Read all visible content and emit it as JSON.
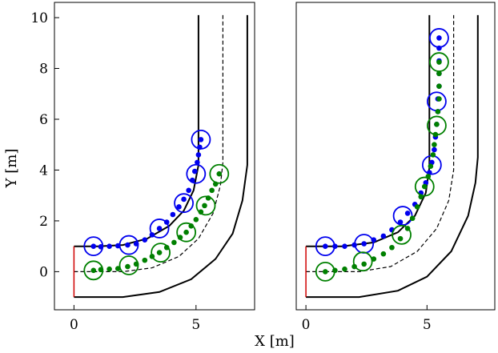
{
  "labels": {
    "xlabel": "X [m]",
    "ylabel": "Y [m]"
  },
  "colors": {
    "blue": "#0000ee",
    "green": "#008000",
    "wall": "#000000",
    "centerline": "#000000",
    "start": "#d00000"
  },
  "chart_data": [
    {
      "type": "scatter",
      "title": "",
      "xlim": [
        -0.8,
        7.4
      ],
      "ylim": [
        -1.5,
        10.6
      ],
      "xticks": [
        0,
        5
      ],
      "yticks": [
        0,
        2,
        4,
        6,
        8,
        10
      ],
      "xtick_labels": [
        "0",
        "5"
      ],
      "ytick_labels": [
        "0",
        "2",
        "4",
        "6",
        "8",
        "10"
      ],
      "track": {
        "inner_wall": [
          [
            0,
            1
          ],
          [
            1,
            1
          ],
          [
            2,
            1.05
          ],
          [
            3,
            1.3
          ],
          [
            3.9,
            1.8
          ],
          [
            4.5,
            2.4
          ],
          [
            4.9,
            3.2
          ],
          [
            5.1,
            4.2
          ],
          [
            5.1,
            10.1
          ]
        ],
        "outer_wall": [
          [
            0,
            -1
          ],
          [
            2,
            -1
          ],
          [
            3.5,
            -0.8
          ],
          [
            4.8,
            -0.3
          ],
          [
            5.8,
            0.5
          ],
          [
            6.5,
            1.5
          ],
          [
            6.9,
            2.8
          ],
          [
            7.1,
            4.2
          ],
          [
            7.1,
            10.1
          ]
        ],
        "centerline": [
          [
            0,
            0
          ],
          [
            2,
            0
          ],
          [
            3.2,
            0.15
          ],
          [
            4.3,
            0.6
          ],
          [
            5.1,
            1.3
          ],
          [
            5.7,
            2.3
          ],
          [
            6,
            3.4
          ],
          [
            6.1,
            4.3
          ],
          [
            6.1,
            10.1
          ]
        ],
        "start_line": [
          [
            0,
            -1
          ],
          [
            0,
            1
          ]
        ]
      },
      "series": [
        {
          "color": "blue",
          "points": [
            [
              0.8,
              1
            ],
            [
              1.1,
              0.98
            ],
            [
              1.45,
              1
            ],
            [
              1.8,
              1.02
            ],
            [
              2.2,
              1.05
            ],
            [
              2.55,
              1.1
            ],
            [
              2.9,
              1.25
            ],
            [
              3.2,
              1.45
            ],
            [
              3.5,
              1.7
            ],
            [
              3.8,
              1.95
            ],
            [
              4.05,
              2.25
            ],
            [
              4.3,
              2.55
            ],
            [
              4.5,
              2.85
            ],
            [
              4.7,
              3.2
            ],
            [
              4.85,
              3.6
            ],
            [
              4.95,
              3.95
            ],
            [
              5.05,
              4.3
            ],
            [
              5.1,
              4.6
            ],
            [
              5.15,
              4.9
            ],
            [
              5.2,
              5.2
            ]
          ],
          "circles": [
            [
              0.8,
              1
            ],
            [
              2.25,
              1.05
            ],
            [
              3.5,
              1.7
            ],
            [
              4.5,
              2.7
            ],
            [
              5.0,
              3.85
            ],
            [
              5.2,
              5.2
            ]
          ]
        },
        {
          "color": "green",
          "points": [
            [
              0.8,
              0.05
            ],
            [
              1.1,
              0.08
            ],
            [
              1.45,
              0.1
            ],
            [
              1.8,
              0.12
            ],
            [
              2.2,
              0.2
            ],
            [
              2.55,
              0.3
            ],
            [
              2.9,
              0.45
            ],
            [
              3.2,
              0.6
            ],
            [
              3.5,
              0.75
            ],
            [
              3.8,
              0.95
            ],
            [
              4.1,
              1.15
            ],
            [
              4.35,
              1.35
            ],
            [
              4.6,
              1.55
            ],
            [
              4.8,
              1.8
            ],
            [
              5.0,
              2.05
            ],
            [
              5.2,
              2.35
            ],
            [
              5.35,
              2.6
            ],
            [
              5.5,
              2.9
            ],
            [
              5.65,
              3.2
            ],
            [
              5.8,
              3.45
            ],
            [
              5.95,
              3.85
            ]
          ],
          "circles": [
            [
              0.8,
              0.05
            ],
            [
              2.25,
              0.25
            ],
            [
              3.55,
              0.75
            ],
            [
              4.6,
              1.55
            ],
            [
              5.4,
              2.6
            ],
            [
              5.95,
              3.85
            ]
          ]
        }
      ]
    },
    {
      "type": "scatter",
      "title": "",
      "xlim": [
        -0.4,
        7.8
      ],
      "ylim": [
        -1.5,
        10.6
      ],
      "xticks": [
        0,
        5
      ],
      "yticks": [],
      "xtick_labels": [
        "0",
        "5"
      ],
      "ytick_labels": [],
      "track": {
        "inner_wall": [
          [
            0,
            1
          ],
          [
            1.5,
            1
          ],
          [
            2.8,
            1.15
          ],
          [
            3.8,
            1.55
          ],
          [
            4.5,
            2.2
          ],
          [
            4.95,
            3.1
          ],
          [
            5.1,
            4.1
          ],
          [
            5.1,
            10.1
          ]
        ],
        "outer_wall": [
          [
            0,
            -1
          ],
          [
            2.2,
            -1
          ],
          [
            3.8,
            -0.75
          ],
          [
            5.0,
            -0.2
          ],
          [
            6.0,
            0.8
          ],
          [
            6.7,
            2.2
          ],
          [
            7.0,
            3.5
          ],
          [
            7.1,
            4.5
          ],
          [
            7.1,
            10.1
          ]
        ],
        "centerline": [
          [
            0,
            0
          ],
          [
            2.2,
            0
          ],
          [
            3.5,
            0.2
          ],
          [
            4.6,
            0.8
          ],
          [
            5.4,
            1.7
          ],
          [
            5.9,
            2.8
          ],
          [
            6.1,
            4.0
          ],
          [
            6.1,
            10.1
          ]
        ],
        "start_line": [
          [
            0,
            -1
          ],
          [
            0,
            1
          ]
        ]
      },
      "series": [
        {
          "color": "blue",
          "points": [
            [
              0.8,
              1
            ],
            [
              1.2,
              1
            ],
            [
              1.6,
              1
            ],
            [
              2.0,
              1.05
            ],
            [
              2.4,
              1.1
            ],
            [
              2.8,
              1.25
            ],
            [
              3.2,
              1.4
            ],
            [
              3.55,
              1.65
            ],
            [
              3.9,
              1.95
            ],
            [
              4.2,
              2.3
            ],
            [
              4.5,
              2.65
            ],
            [
              4.75,
              3.1
            ],
            [
              4.95,
              3.5
            ],
            [
              5.1,
              3.9
            ],
            [
              5.2,
              4.3
            ],
            [
              5.3,
              4.8
            ],
            [
              5.35,
              5.3
            ],
            [
              5.4,
              5.8
            ],
            [
              5.45,
              6.3
            ],
            [
              5.45,
              6.8
            ],
            [
              5.5,
              7.3
            ],
            [
              5.5,
              7.8
            ],
            [
              5.5,
              8.3
            ],
            [
              5.5,
              8.8
            ],
            [
              5.5,
              9.2
            ]
          ],
          "circles": [
            [
              0.8,
              1
            ],
            [
              2.4,
              1.1
            ],
            [
              4.0,
              2.2
            ],
            [
              5.2,
              4.2
            ],
            [
              5.4,
              6.7
            ],
            [
              5.5,
              9.2
            ]
          ]
        },
        {
          "color": "green",
          "points": [
            [
              0.8,
              0
            ],
            [
              1.2,
              0.05
            ],
            [
              1.6,
              0.1
            ],
            [
              2.0,
              0.2
            ],
            [
              2.4,
              0.3
            ],
            [
              2.8,
              0.5
            ],
            [
              3.2,
              0.7
            ],
            [
              3.55,
              0.95
            ],
            [
              3.9,
              1.3
            ],
            [
              4.2,
              1.7
            ],
            [
              4.4,
              2.1
            ],
            [
              4.6,
              2.55
            ],
            [
              4.75,
              2.95
            ],
            [
              4.9,
              3.35
            ],
            [
              5.05,
              3.75
            ],
            [
              5.15,
              4.15
            ],
            [
              5.25,
              4.6
            ],
            [
              5.3,
              5.0
            ],
            [
              5.35,
              5.4
            ],
            [
              5.4,
              5.8
            ],
            [
              5.45,
              6.3
            ],
            [
              5.5,
              6.8
            ],
            [
              5.5,
              7.3
            ],
            [
              5.5,
              7.8
            ],
            [
              5.5,
              8.25
            ]
          ],
          "circles": [
            [
              0.8,
              0
            ],
            [
              2.35,
              0.4
            ],
            [
              3.95,
              1.45
            ],
            [
              4.9,
              3.35
            ],
            [
              5.4,
              5.75
            ],
            [
              5.5,
              8.25
            ]
          ]
        }
      ]
    }
  ]
}
